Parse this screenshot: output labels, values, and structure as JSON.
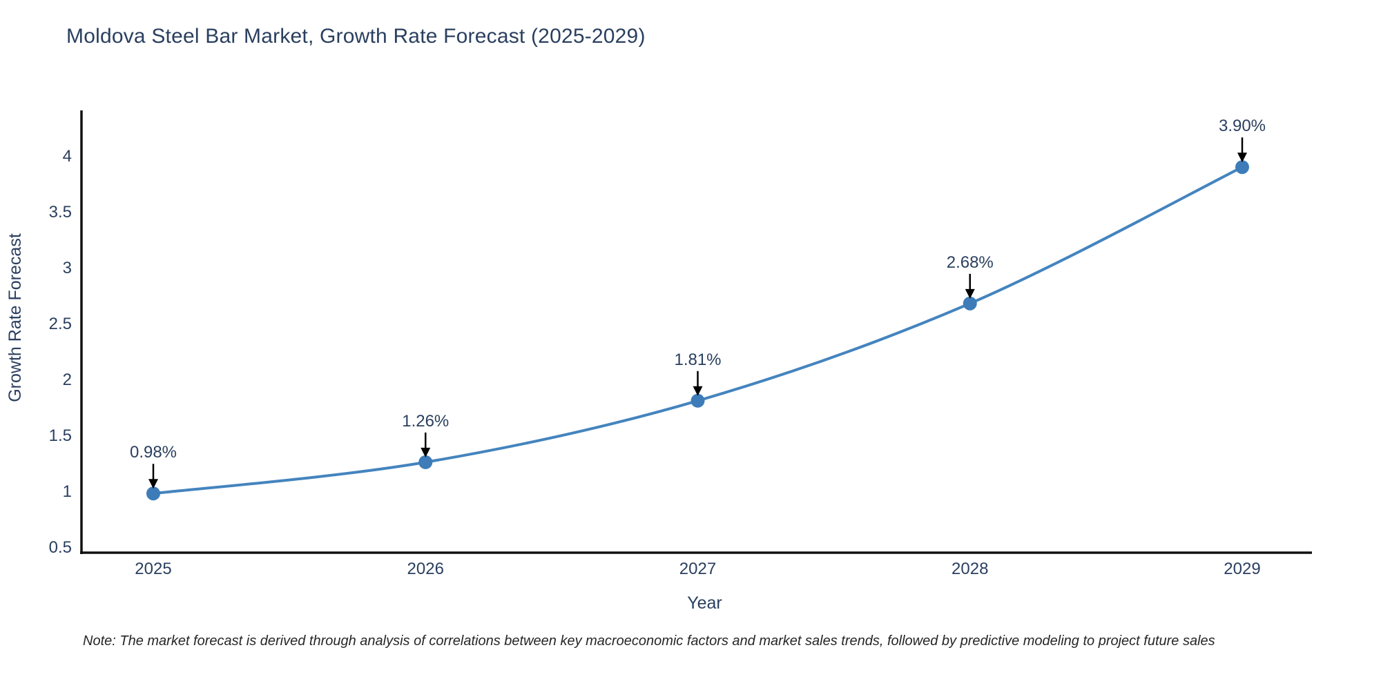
{
  "title": "Moldova Steel Bar Market, Growth Rate Forecast (2025-2029)",
  "note": "Note: The market forecast is derived through analysis of correlations between key macroeconomic factors and market sales trends, followed by predictive modeling to project future sales",
  "chart_data": {
    "type": "line",
    "title": "Moldova Steel Bar Market, Growth Rate Forecast (2025-2029)",
    "xlabel": "Year",
    "ylabel": "Growth Rate Forecast",
    "categories": [
      "2025",
      "2026",
      "2027",
      "2028",
      "2029"
    ],
    "series": [
      {
        "name": "Growth Rate Forecast",
        "values": [
          0.98,
          1.26,
          1.81,
          2.68,
          3.9
        ],
        "point_labels": [
          "0.98%",
          "1.26%",
          "1.81%",
          "2.68%",
          "3.90%"
        ]
      }
    ],
    "yticks": [
      0.5,
      1,
      1.5,
      2,
      2.5,
      3,
      3.5,
      4
    ],
    "ylim": [
      0.45,
      4.45
    ],
    "line_shape": "spline",
    "grid": false,
    "legend_position": "none",
    "colors": {
      "line": "#4484be",
      "marker": "#3d7cb8",
      "axis": "#111111",
      "text": "#2a3f5f",
      "annotation_text": "#2a3f5f",
      "annotation_arrow": "#000000",
      "background": "#ffffff"
    }
  }
}
